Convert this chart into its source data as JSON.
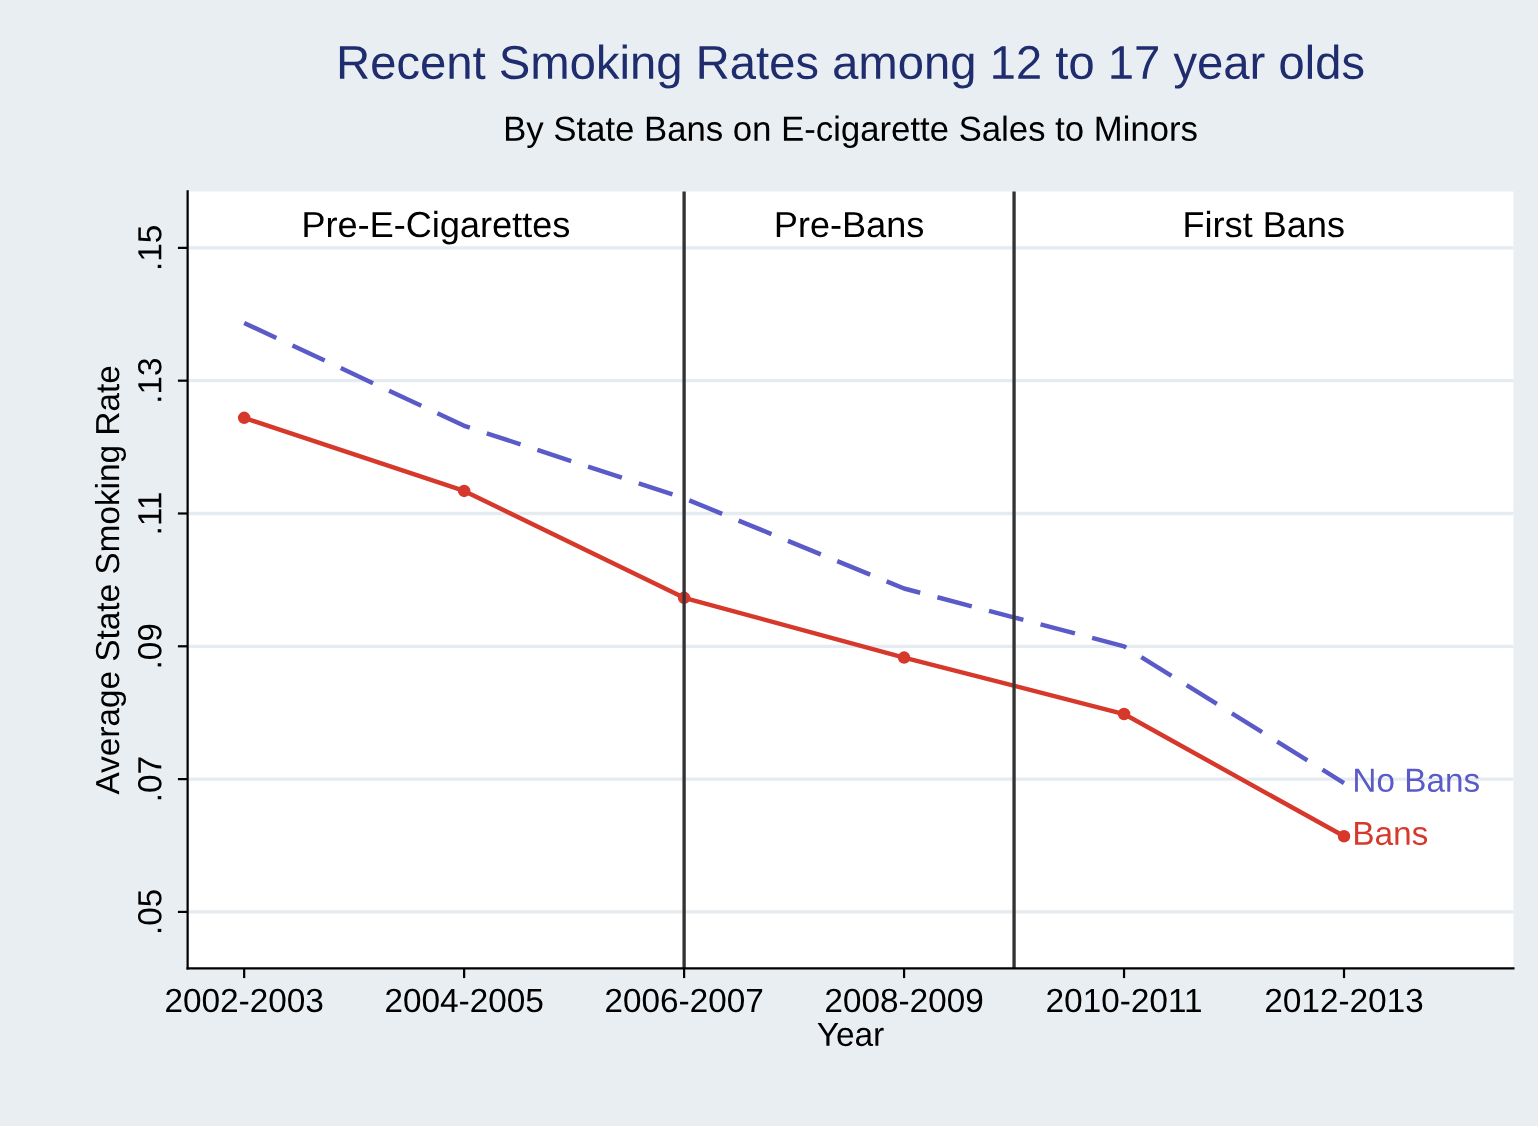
{
  "chart_data": {
    "type": "line",
    "title": "Recent Smoking Rates among 12 to 17 year olds",
    "subtitle": "By State Bans on E-cigarette Sales to Minors",
    "xlabel": "Year",
    "ylabel": "Average State Smoking Rate",
    "categories": [
      "2002-2003",
      "2004-2005",
      "2006-2007",
      "2008-2009",
      "2010-2011",
      "2012-2013"
    ],
    "series": [
      {
        "name": "No Bans",
        "color": "#5a5ac8",
        "line_style": "dashed",
        "marker": "none",
        "values": [
          0.1387,
          0.1232,
          0.1123,
          0.0987,
          0.09,
          0.0694
        ]
      },
      {
        "name": "Bans",
        "color": "#d6392b",
        "line_style": "solid",
        "marker": "circle",
        "values": [
          0.1244,
          0.1134,
          0.0973,
          0.0883,
          0.0798,
          0.0614
        ]
      }
    ],
    "ylim": [
      0.0415,
      0.1585
    ],
    "yticks": [
      {
        "value": 0.05,
        "label": ".05"
      },
      {
        "value": 0.07,
        "label": ".07"
      },
      {
        "value": 0.09,
        "label": ".09"
      },
      {
        "value": 0.11,
        "label": ".11"
      },
      {
        "value": 0.13,
        "label": ".13"
      },
      {
        "value": 0.15,
        "label": ".15"
      }
    ],
    "ref_lines": [
      {
        "axis": "x",
        "value": "2006-2007",
        "color": "#333333"
      }
    ],
    "annotations": [
      "Pre-E-Cigarettes",
      "Pre-Bans",
      "First Bans"
    ],
    "grid": "y",
    "legend": false
  }
}
